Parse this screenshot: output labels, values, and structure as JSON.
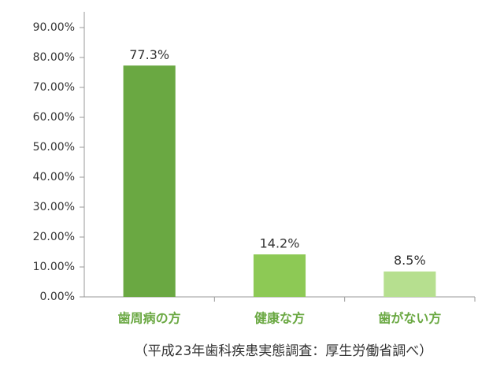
{
  "chart_data": {
    "type": "bar",
    "categories": [
      "歯周病の方",
      "健康な方",
      "歯がない方"
    ],
    "values": [
      77.3,
      14.2,
      8.5
    ],
    "value_labels": [
      "77.3%",
      "14.2%",
      "8.5%"
    ],
    "colors": [
      "#6aa842",
      "#8dc955",
      "#b6df8f"
    ],
    "ylim": [
      0,
      90
    ],
    "yticks": [
      {
        "value": 0,
        "label": "0.00%"
      },
      {
        "value": 10,
        "label": "10.00%"
      },
      {
        "value": 20,
        "label": "20.00%"
      },
      {
        "value": 30,
        "label": "30.00%"
      },
      {
        "value": 40,
        "label": "40.00%"
      },
      {
        "value": 50,
        "label": "50.00%"
      },
      {
        "value": 60,
        "label": "60.00%"
      },
      {
        "value": 70,
        "label": "70.00%"
      },
      {
        "value": 80,
        "label": "80.00%"
      },
      {
        "value": 90,
        "label": "90.00%"
      }
    ],
    "note": "（平成23年歯科疾患実態調査：厚生労働省調べ）"
  }
}
